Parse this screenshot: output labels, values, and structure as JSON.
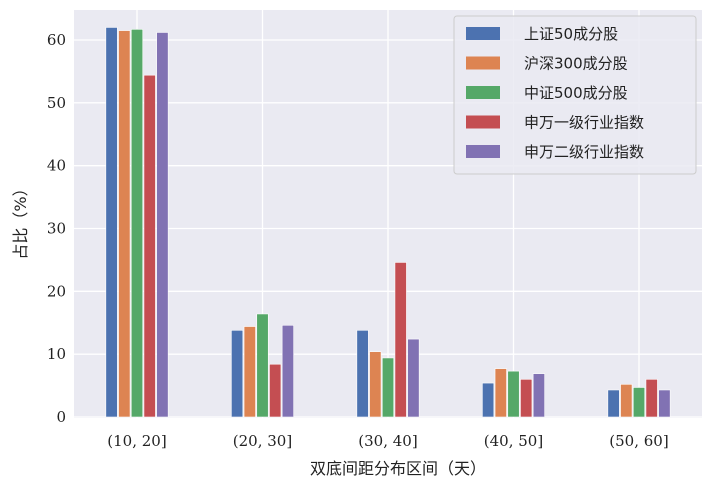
{
  "chart_data": {
    "type": "bar",
    "xlabel": "双底间距分布区间（天）",
    "ylabel": "占比（%）",
    "categories": [
      "(10, 20]",
      "(20, 30]",
      "(30, 40]",
      "(40, 50]",
      "(50, 60]"
    ],
    "ylim": [
      0,
      64
    ],
    "yticks": [
      0,
      10,
      20,
      30,
      40,
      50,
      60
    ],
    "grid": true,
    "legend_position": "top-right",
    "series": [
      {
        "name": "上证50成分股",
        "color": "#4C72B0",
        "values": [
          62.0,
          13.8,
          13.8,
          5.4,
          4.3
        ]
      },
      {
        "name": "沪深300成分股",
        "color": "#DD8452",
        "values": [
          61.5,
          14.4,
          10.4,
          7.7,
          5.2
        ]
      },
      {
        "name": "中证500成分股",
        "color": "#55A868",
        "values": [
          61.7,
          16.4,
          9.4,
          7.3,
          4.7
        ]
      },
      {
        "name": "申万一级行业指数",
        "color": "#C44E52",
        "values": [
          54.4,
          8.4,
          24.6,
          6.0,
          6.0
        ]
      },
      {
        "name": "申万二级行业指数",
        "color": "#8172B3",
        "values": [
          61.2,
          14.6,
          12.4,
          6.9,
          4.3
        ]
      }
    ]
  }
}
